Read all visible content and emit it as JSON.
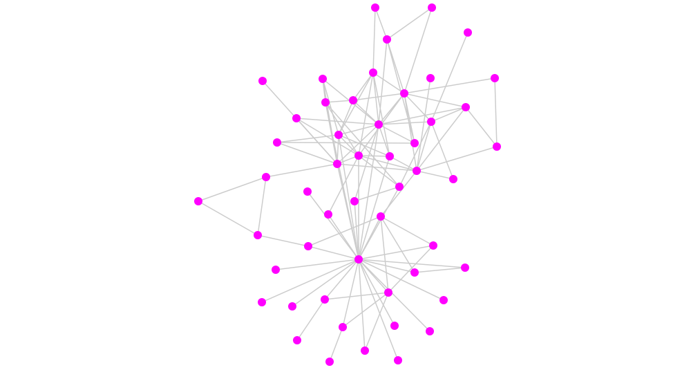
{
  "graph": {
    "type": "force-directed network",
    "node_color": "#ff00ff",
    "edge_color": "#cccccc",
    "node_count": 51,
    "edges": [
      [
        0,
        2
      ],
      [
        0,
        4
      ],
      [
        1,
        2
      ],
      [
        1,
        9
      ],
      [
        2,
        9
      ],
      [
        2,
        14
      ],
      [
        2,
        18
      ],
      [
        3,
        15
      ],
      [
        4,
        9
      ],
      [
        4,
        14
      ],
      [
        4,
        16
      ],
      [
        4,
        11
      ],
      [
        4,
        20
      ],
      [
        4,
        21
      ],
      [
        5,
        23
      ],
      [
        6,
        9
      ],
      [
        6,
        19
      ],
      [
        7,
        22
      ],
      [
        8,
        14
      ],
      [
        8,
        22
      ],
      [
        8,
        16
      ],
      [
        8,
        10
      ],
      [
        9,
        11
      ],
      [
        9,
        12
      ],
      [
        9,
        14
      ],
      [
        9,
        15
      ],
      [
        9,
        18
      ],
      [
        9,
        20
      ],
      [
        9,
        23
      ],
      [
        10,
        11
      ],
      [
        10,
        22
      ],
      [
        10,
        20
      ],
      [
        10,
        26
      ],
      [
        11,
        14
      ],
      [
        11,
        16
      ],
      [
        12,
        15
      ],
      [
        12,
        19
      ],
      [
        12,
        23
      ],
      [
        12,
        14
      ],
      [
        13,
        14
      ],
      [
        13,
        22
      ],
      [
        13,
        20
      ],
      [
        14,
        15
      ],
      [
        14,
        16
      ],
      [
        14,
        18
      ],
      [
        14,
        21
      ],
      [
        14,
        22
      ],
      [
        14,
        28
      ],
      [
        15,
        23
      ],
      [
        15,
        25
      ],
      [
        15,
        26
      ],
      [
        16,
        20
      ],
      [
        16,
        21
      ],
      [
        16,
        22
      ],
      [
        17,
        18
      ],
      [
        17,
        22
      ],
      [
        17,
        16
      ],
      [
        19,
        23
      ],
      [
        20,
        21
      ],
      [
        20,
        22
      ],
      [
        20,
        23
      ],
      [
        20,
        26
      ],
      [
        21,
        23
      ],
      [
        22,
        24
      ],
      [
        22,
        23
      ],
      [
        22,
        35
      ],
      [
        23,
        25
      ],
      [
        23,
        31
      ],
      [
        24,
        29
      ],
      [
        24,
        32
      ],
      [
        26,
        28
      ],
      [
        29,
        32
      ],
      [
        32,
        33
      ],
      [
        27,
        35
      ],
      [
        30,
        35
      ],
      [
        30,
        20
      ],
      [
        31,
        33
      ],
      [
        31,
        34
      ],
      [
        31,
        38
      ],
      [
        31,
        42
      ],
      [
        34,
        35
      ],
      [
        34,
        42
      ],
      [
        37,
        38
      ],
      [
        37,
        35
      ],
      [
        38,
        35
      ],
      [
        42,
        41
      ],
      [
        42,
        44
      ],
      [
        42,
        48
      ],
      [
        41,
        47
      ],
      [
        44,
        49
      ],
      [
        35,
        36
      ],
      [
        35,
        39
      ],
      [
        35,
        40
      ],
      [
        35,
        41
      ],
      [
        35,
        44
      ],
      [
        35,
        48
      ],
      [
        35,
        50
      ],
      [
        35,
        45
      ],
      [
        35,
        46
      ],
      [
        35,
        43
      ],
      [
        35,
        42
      ],
      [
        35,
        33
      ],
      [
        35,
        31
      ],
      [
        35,
        20
      ],
      [
        35,
        16
      ],
      [
        35,
        28
      ],
      [
        35,
        14
      ],
      [
        35,
        21
      ],
      [
        35,
        26
      ],
      [
        35,
        10
      ]
    ]
  }
}
